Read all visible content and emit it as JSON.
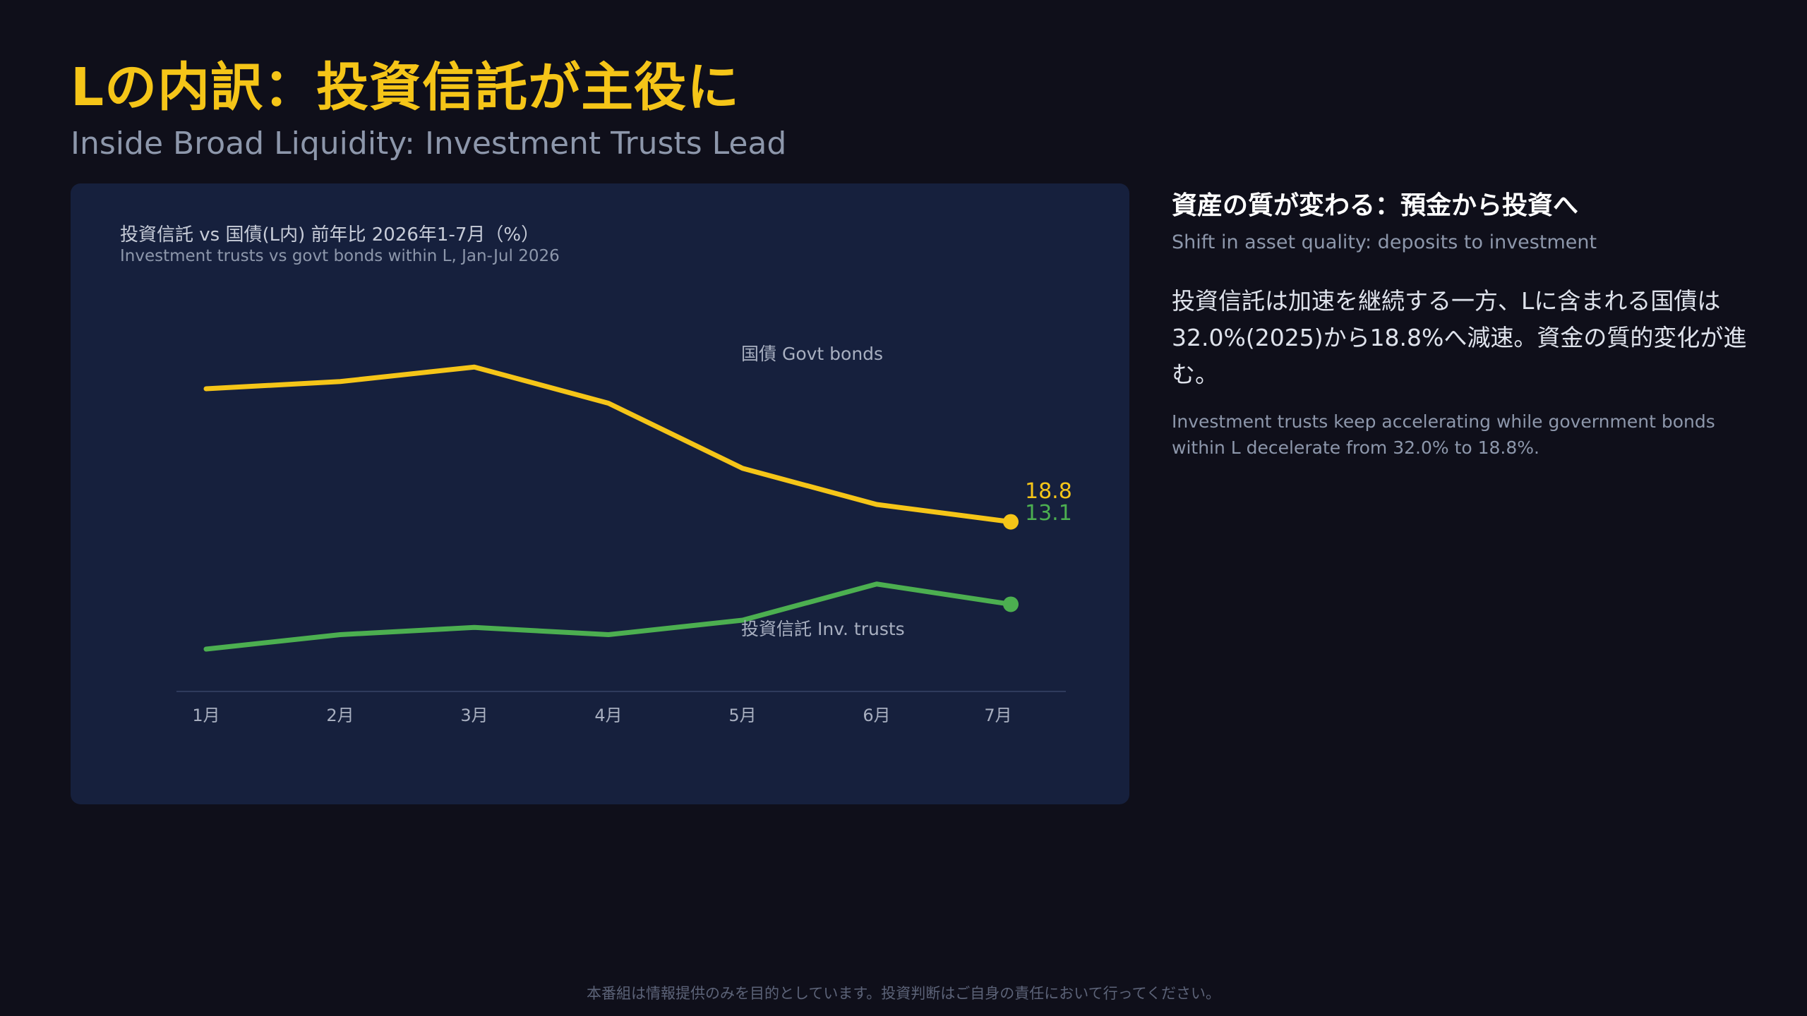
{
  "header": {
    "title": "Lの内訳：投資信託が主役に",
    "subtitle": "Inside Broad Liquidity: Investment Trusts Lead"
  },
  "chart_data": {
    "type": "line",
    "title": "投資信託 vs 国債(L内) 前年比 2026年1-7月（%）",
    "subtitle": "Investment trusts vs govt bonds within L, Jan-Jul 2026",
    "categories": [
      "1月",
      "2月",
      "3月",
      "4月",
      "5月",
      "6月",
      "7月"
    ],
    "ylim": [
      10,
      30
    ],
    "grid": false,
    "legend": "inline labels",
    "series": [
      {
        "name": "国債 Govt bonds",
        "color": "#f5c518",
        "values": [
          28.0,
          28.5,
          29.5,
          27.0,
          22.5,
          20.0,
          18.8
        ]
      },
      {
        "name": "投資信託 Inv. trusts",
        "color": "#4caf50",
        "values": [
          10.0,
          11.0,
          11.5,
          11.0,
          12.0,
          14.5,
          13.1
        ]
      }
    ],
    "end_labels": [
      "18.8",
      "13.1"
    ]
  },
  "side": {
    "heading": "資産の質が変わる：預金から投資へ",
    "heading_en": "Shift in asset quality: deposits to investment",
    "body": "投資信託は加速を継続する一方、Lに含まれる国債は32.0%(2025)から18.8%へ減速。資金の質的変化が進む。",
    "body_en": "Investment trusts keep accelerating while government bonds within L decelerate from 32.0% to 18.8%."
  },
  "footer": {
    "disclaimer": "本番組は情報提供のみを目的としています。投資判断はご自身の責任において行ってください。"
  }
}
